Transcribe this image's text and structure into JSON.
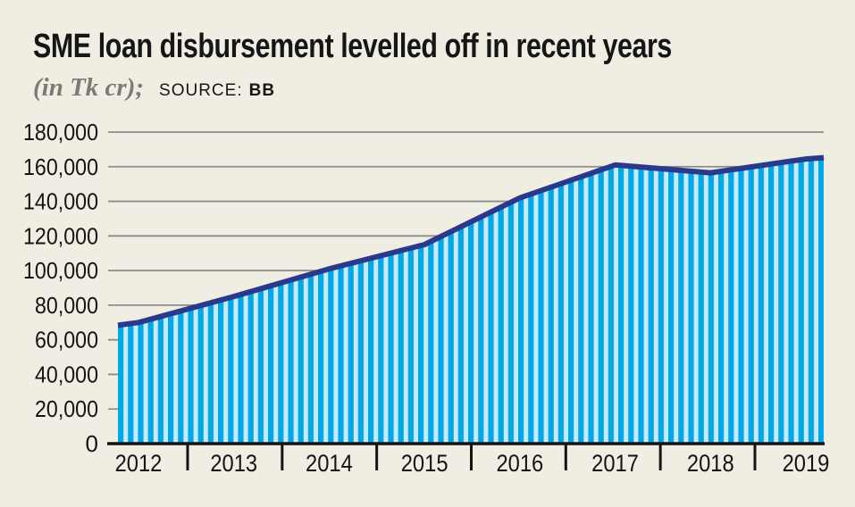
{
  "page": {
    "background": "#F0EDE3"
  },
  "header": {
    "title": "SME loan disbursement levelled off in recent years",
    "unit_note": "(in Tk cr);",
    "source_label": "SOURCE:",
    "source_value": "BB"
  },
  "chart_data": {
    "type": "area",
    "title": "SME loan disbursement levelled off in recent years",
    "unit": "Tk cr",
    "source": "BB",
    "categories": [
      "2012",
      "2013",
      "2014",
      "2015",
      "2016",
      "2017",
      "2018",
      "2019"
    ],
    "values": [
      70000,
      85000,
      101000,
      115000,
      142000,
      161000,
      156500,
      164500
    ],
    "ylim": [
      0,
      180000
    ],
    "ytick_step": 20000,
    "ytick_labels": [
      "0",
      "20,000",
      "40,000",
      "60,000",
      "80,000",
      "100,000",
      "120,000",
      "140,000",
      "160,000",
      "180,000"
    ],
    "grid": true,
    "legend": "none",
    "style": {
      "stripe_color": "#00A9E6",
      "stripe_alt_color": "#C9E9F5",
      "line_color": "#293A8C",
      "grid_color": "#8C8C8C",
      "axis_color": "#141414",
      "label_color": "#141414"
    }
  }
}
